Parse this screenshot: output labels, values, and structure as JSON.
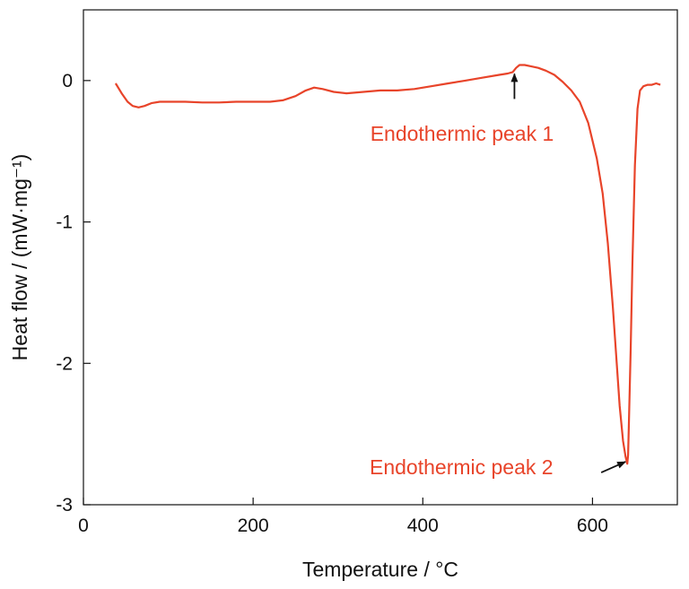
{
  "chart_data": {
    "type": "line",
    "title": "",
    "xlabel": "Temperature / °C",
    "ylabel": "Heat flow / (mW·mg⁻¹)",
    "xlim": [
      0,
      700
    ],
    "ylim": [
      -3,
      0.5
    ],
    "xticks": [
      0,
      200,
      400,
      600
    ],
    "xtick_labels": [
      "0",
      "200",
      "400",
      "600"
    ],
    "yticks": [
      0,
      -1,
      -2,
      -3
    ],
    "ytick_labels": [
      "0",
      "-1",
      "-2",
      "-3"
    ],
    "grid": false,
    "legend": "none",
    "series": [
      {
        "color": "#e8442a",
        "x": [
          38,
          45,
          52,
          58,
          65,
          72,
          80,
          90,
          100,
          120,
          140,
          160,
          180,
          200,
          220,
          235,
          250,
          262,
          272,
          282,
          295,
          310,
          330,
          350,
          370,
          390,
          410,
          430,
          450,
          470,
          490,
          500,
          506,
          510,
          514,
          520,
          528,
          536,
          545,
          555,
          565,
          575,
          585,
          595,
          605,
          612,
          618,
          624,
          628,
          632,
          636,
          639,
          641,
          642,
          643,
          645,
          647,
          650,
          653,
          656,
          660,
          665,
          670,
          675,
          680
        ],
        "y": [
          -0.02,
          -0.09,
          -0.15,
          -0.18,
          -0.19,
          -0.18,
          -0.16,
          -0.15,
          -0.15,
          -0.15,
          -0.155,
          -0.155,
          -0.15,
          -0.15,
          -0.15,
          -0.14,
          -0.11,
          -0.07,
          -0.05,
          -0.06,
          -0.08,
          -0.09,
          -0.08,
          -0.07,
          -0.07,
          -0.06,
          -0.04,
          -0.02,
          0.0,
          0.02,
          0.04,
          0.05,
          0.06,
          0.09,
          0.11,
          0.11,
          0.1,
          0.09,
          0.07,
          0.04,
          -0.01,
          -0.07,
          -0.15,
          -0.3,
          -0.55,
          -0.8,
          -1.15,
          -1.6,
          -1.95,
          -2.3,
          -2.55,
          -2.66,
          -2.71,
          -2.65,
          -2.4,
          -1.9,
          -1.3,
          -0.6,
          -0.2,
          -0.07,
          -0.04,
          -0.03,
          -0.03,
          -0.02,
          -0.03
        ]
      }
    ],
    "annotations": [
      {
        "text": "Endothermic peak 1",
        "x": 508,
        "y": 0.06,
        "color": "#e8442a",
        "arrow_color": "#111111"
      },
      {
        "text": "Endothermic peak 2",
        "x": 642,
        "y": -2.69,
        "color": "#e8442a",
        "arrow_color": "#111111"
      }
    ]
  }
}
